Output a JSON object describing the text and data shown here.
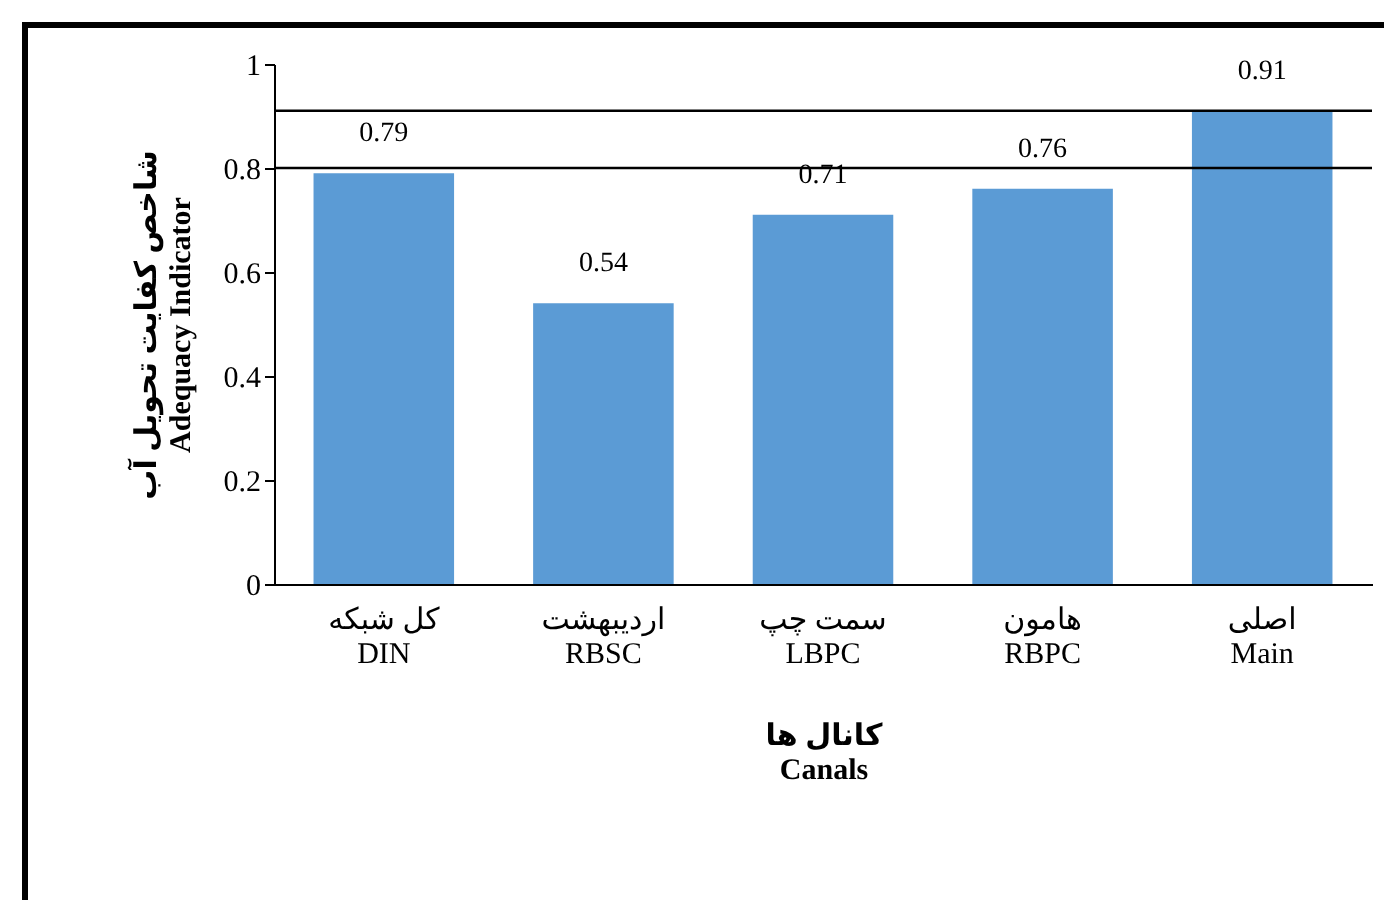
{
  "chart_data": {
    "type": "bar",
    "xlabel": "کانال ها\nCanals",
    "ylabel": "شاخص کفایت تحویل آب\nAdequacy Indicator",
    "categories": [
      "کل شبکه\nDIN",
      "اردیبهشت\nRBSC",
      "سمت چپ\nLBPC",
      "هامون\nRBPC",
      "اصلی\nMain"
    ],
    "values": [
      0.79,
      0.54,
      0.71,
      0.76,
      0.91
    ],
    "color": "#5b9bd5",
    "ylim": [
      0,
      1
    ],
    "yticks": [
      0,
      0.2,
      0.4,
      0.6,
      0.8,
      1
    ],
    "grid": false,
    "data_labels": true,
    "ref_lines": [
      {
        "axis": "y",
        "value": 0.8,
        "color": "#000000"
      },
      {
        "axis": "y",
        "value": 0.91,
        "color": "#000000"
      }
    ]
  }
}
